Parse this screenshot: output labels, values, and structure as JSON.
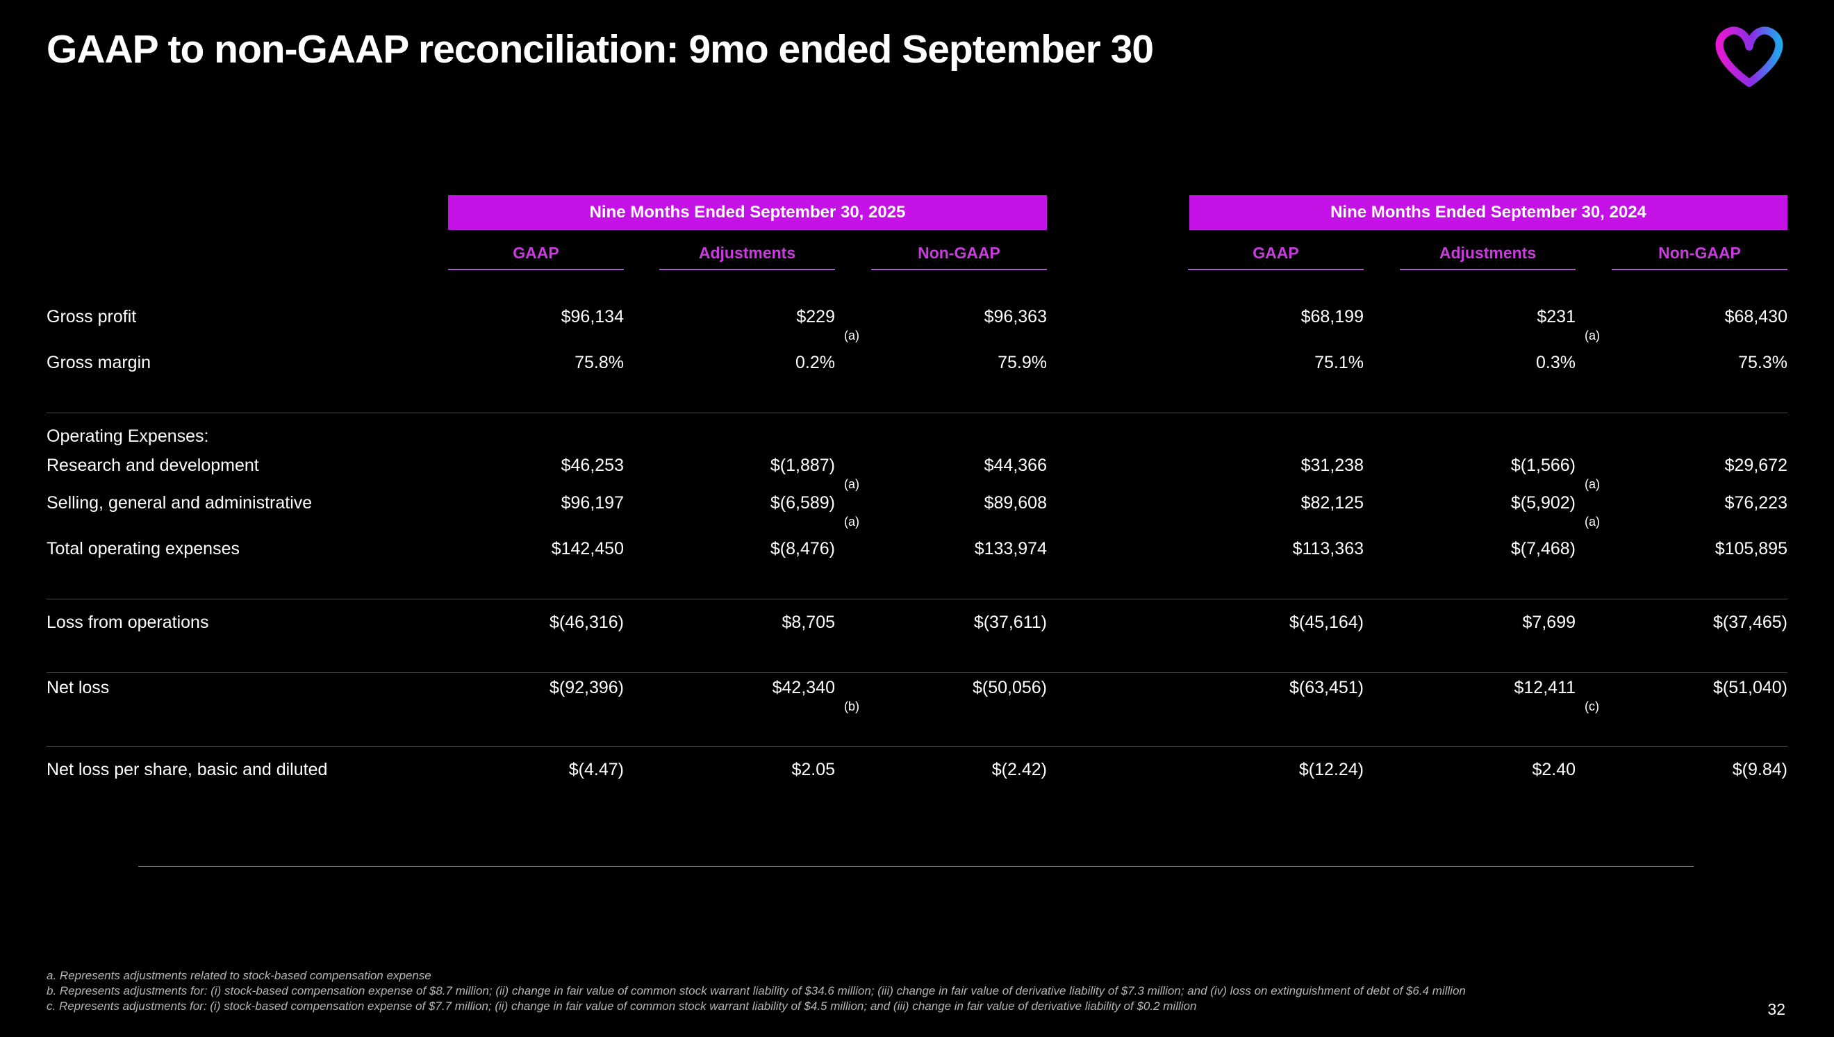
{
  "slide": {
    "title": "GAAP to non-GAAP reconciliation: 9mo ended September 30",
    "page_number": "32",
    "colors": {
      "background": "#000000",
      "accent_magenta": "#c411e6",
      "subheader_text": "#cb3be0",
      "divider": "#4a4a4a",
      "footnote_text": "#b5b5b5",
      "logo_gradient_start": "#e619d2",
      "logo_gradient_end": "#2f6ef0"
    }
  },
  "table": {
    "column_groups": [
      {
        "label": "Nine Months Ended September 30, 2025",
        "columns": [
          "GAAP",
          "Adjustments",
          "Non-GAAP"
        ]
      },
      {
        "label": "Nine Months Ended September 30, 2024",
        "columns": [
          "GAAP",
          "Adjustments",
          "Non-GAAP"
        ]
      }
    ],
    "rows": [
      {
        "type": "data",
        "label": "Gross profit",
        "values": [
          "$96,134",
          "$229",
          "$96,363",
          "$68,199",
          "$231",
          "$68,430"
        ],
        "notes": [
          "",
          "(a)",
          "",
          "",
          "(a)",
          ""
        ]
      },
      {
        "type": "data",
        "label": "Gross margin",
        "values": [
          "75.8%",
          "0.2%",
          "75.9%",
          "75.1%",
          "0.3%",
          "75.3%"
        ],
        "notes": [
          "",
          "",
          "",
          "",
          "",
          ""
        ]
      },
      {
        "type": "section",
        "label": "Operating Expenses:",
        "divider_before": true
      },
      {
        "type": "data",
        "label": "Research and development",
        "values": [
          "$46,253",
          "$(1,887)",
          "$44,366",
          "$31,238",
          "$(1,566)",
          "$29,672"
        ],
        "notes": [
          "",
          "(a)",
          "",
          "",
          "(a)",
          ""
        ]
      },
      {
        "type": "data",
        "label": "Selling, general and administrative",
        "values": [
          "$96,197",
          "$(6,589)",
          "$89,608",
          "$82,125",
          "$(5,902)",
          "$76,223"
        ],
        "notes": [
          "",
          "(a)",
          "",
          "",
          "(a)",
          ""
        ]
      },
      {
        "type": "data",
        "label": "Total operating expenses",
        "values": [
          "$142,450",
          "$(8,476)",
          "$133,974",
          "$113,363",
          "$(7,468)",
          "$105,895"
        ],
        "notes": [
          "",
          "",
          "",
          "",
          "",
          ""
        ]
      },
      {
        "type": "data",
        "label": "Loss from operations",
        "values": [
          "$(46,316)",
          "$8,705",
          "$(37,611)",
          "$(45,164)",
          "$7,699",
          "$(37,465)"
        ],
        "notes": [
          "",
          "",
          "",
          "",
          "",
          ""
        ],
        "divider_before": true
      },
      {
        "type": "data",
        "label": "Net loss",
        "values": [
          "$(92,396)",
          "$42,340",
          "$(50,056)",
          "$(63,451)",
          "$12,411",
          "$(51,040)"
        ],
        "notes": [
          "",
          "(b)",
          "",
          "",
          "(c)",
          ""
        ],
        "divider_before": true
      },
      {
        "type": "data",
        "label": "Net loss per share, basic and diluted",
        "values": [
          "$(4.47)",
          "$2.05",
          "$(2.42)",
          "$(12.24)",
          "$2.40",
          "$(9.84)"
        ],
        "notes": [
          "",
          "",
          "",
          "",
          "",
          ""
        ],
        "divider_before": true
      }
    ]
  },
  "footnotes": [
    "a. Represents adjustments related to stock-based compensation expense",
    "b. Represents adjustments for: (i) stock-based compensation expense of $8.7 million; (ii) change in fair value of common stock warrant liability of $34.6 million; (iii) change in fair value of derivative liability of $7.3 million; and (iv) loss on extinguishment of debt of $6.4 million",
    "c. Represents adjustments for: (i) stock-based compensation expense of $7.7 million; (ii) change in fair value of common stock warrant liability of $4.5 million; and (iii) change in fair value of derivative liability of $0.2 million"
  ]
}
